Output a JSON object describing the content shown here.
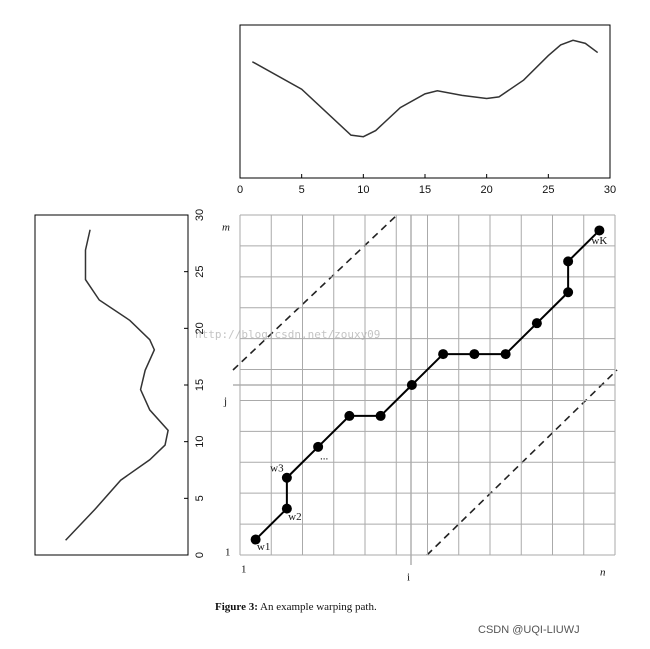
{
  "chart_data": [
    {
      "type": "line",
      "orientation": "horizontal",
      "color": "#333",
      "x": [
        1,
        5,
        9,
        10,
        11,
        13,
        15,
        16,
        18,
        20,
        21,
        23,
        25,
        26,
        27,
        28,
        29
      ],
      "values": [
        0.76,
        0.58,
        0.28,
        0.27,
        0.31,
        0.46,
        0.55,
        0.57,
        0.54,
        0.52,
        0.53,
        0.64,
        0.8,
        0.87,
        0.9,
        0.88,
        0.82
      ],
      "xlim": [
        0,
        30
      ],
      "xticks": [
        0,
        5,
        10,
        15,
        20,
        25,
        30
      ],
      "ylim": [
        0,
        1
      ]
    },
    {
      "type": "line",
      "orientation": "vertical",
      "color": "#333",
      "x": [
        1.3,
        4,
        6.6,
        8.4,
        9.7,
        11,
        12.8,
        14.6,
        16.3,
        18.1,
        19,
        20.7,
        22.5,
        24.3,
        26.9,
        28.7
      ],
      "values": [
        0.2,
        0.39,
        0.56,
        0.75,
        0.85,
        0.87,
        0.75,
        0.69,
        0.72,
        0.78,
        0.75,
        0.62,
        0.42,
        0.33,
        0.33,
        0.36
      ],
      "xlim": [
        0,
        30
      ],
      "xticks": [
        0,
        5,
        10,
        15,
        20,
        25,
        30
      ],
      "ylim": [
        0,
        1
      ]
    },
    {
      "type": "path",
      "color": "#000",
      "x": [
        0,
        1,
        1,
        2,
        3,
        4,
        5,
        6,
        7,
        8,
        9,
        10,
        10,
        11
      ],
      "values": [
        0,
        1,
        2,
        3,
        4,
        4,
        5,
        6,
        6,
        6,
        7,
        8,
        9,
        10
      ],
      "point_labels": [
        "w1",
        "w2",
        "w3",
        "...",
        null,
        null,
        null,
        null,
        null,
        null,
        null,
        null,
        null,
        "wK"
      ],
      "xlim": [
        -0.5,
        11.5
      ],
      "ylim": [
        -0.5,
        10.5
      ],
      "axis_labels": {
        "m": "m",
        "n": "n",
        "i": "i",
        "j": "j",
        "origin": "1"
      }
    }
  ],
  "watermark": "http://blog.csdn.net/zouxy09",
  "caption": {
    "bold": "Figure 3:",
    "text": " An example warping path."
  },
  "footer": "CSDN @UQI-LIUWJ"
}
